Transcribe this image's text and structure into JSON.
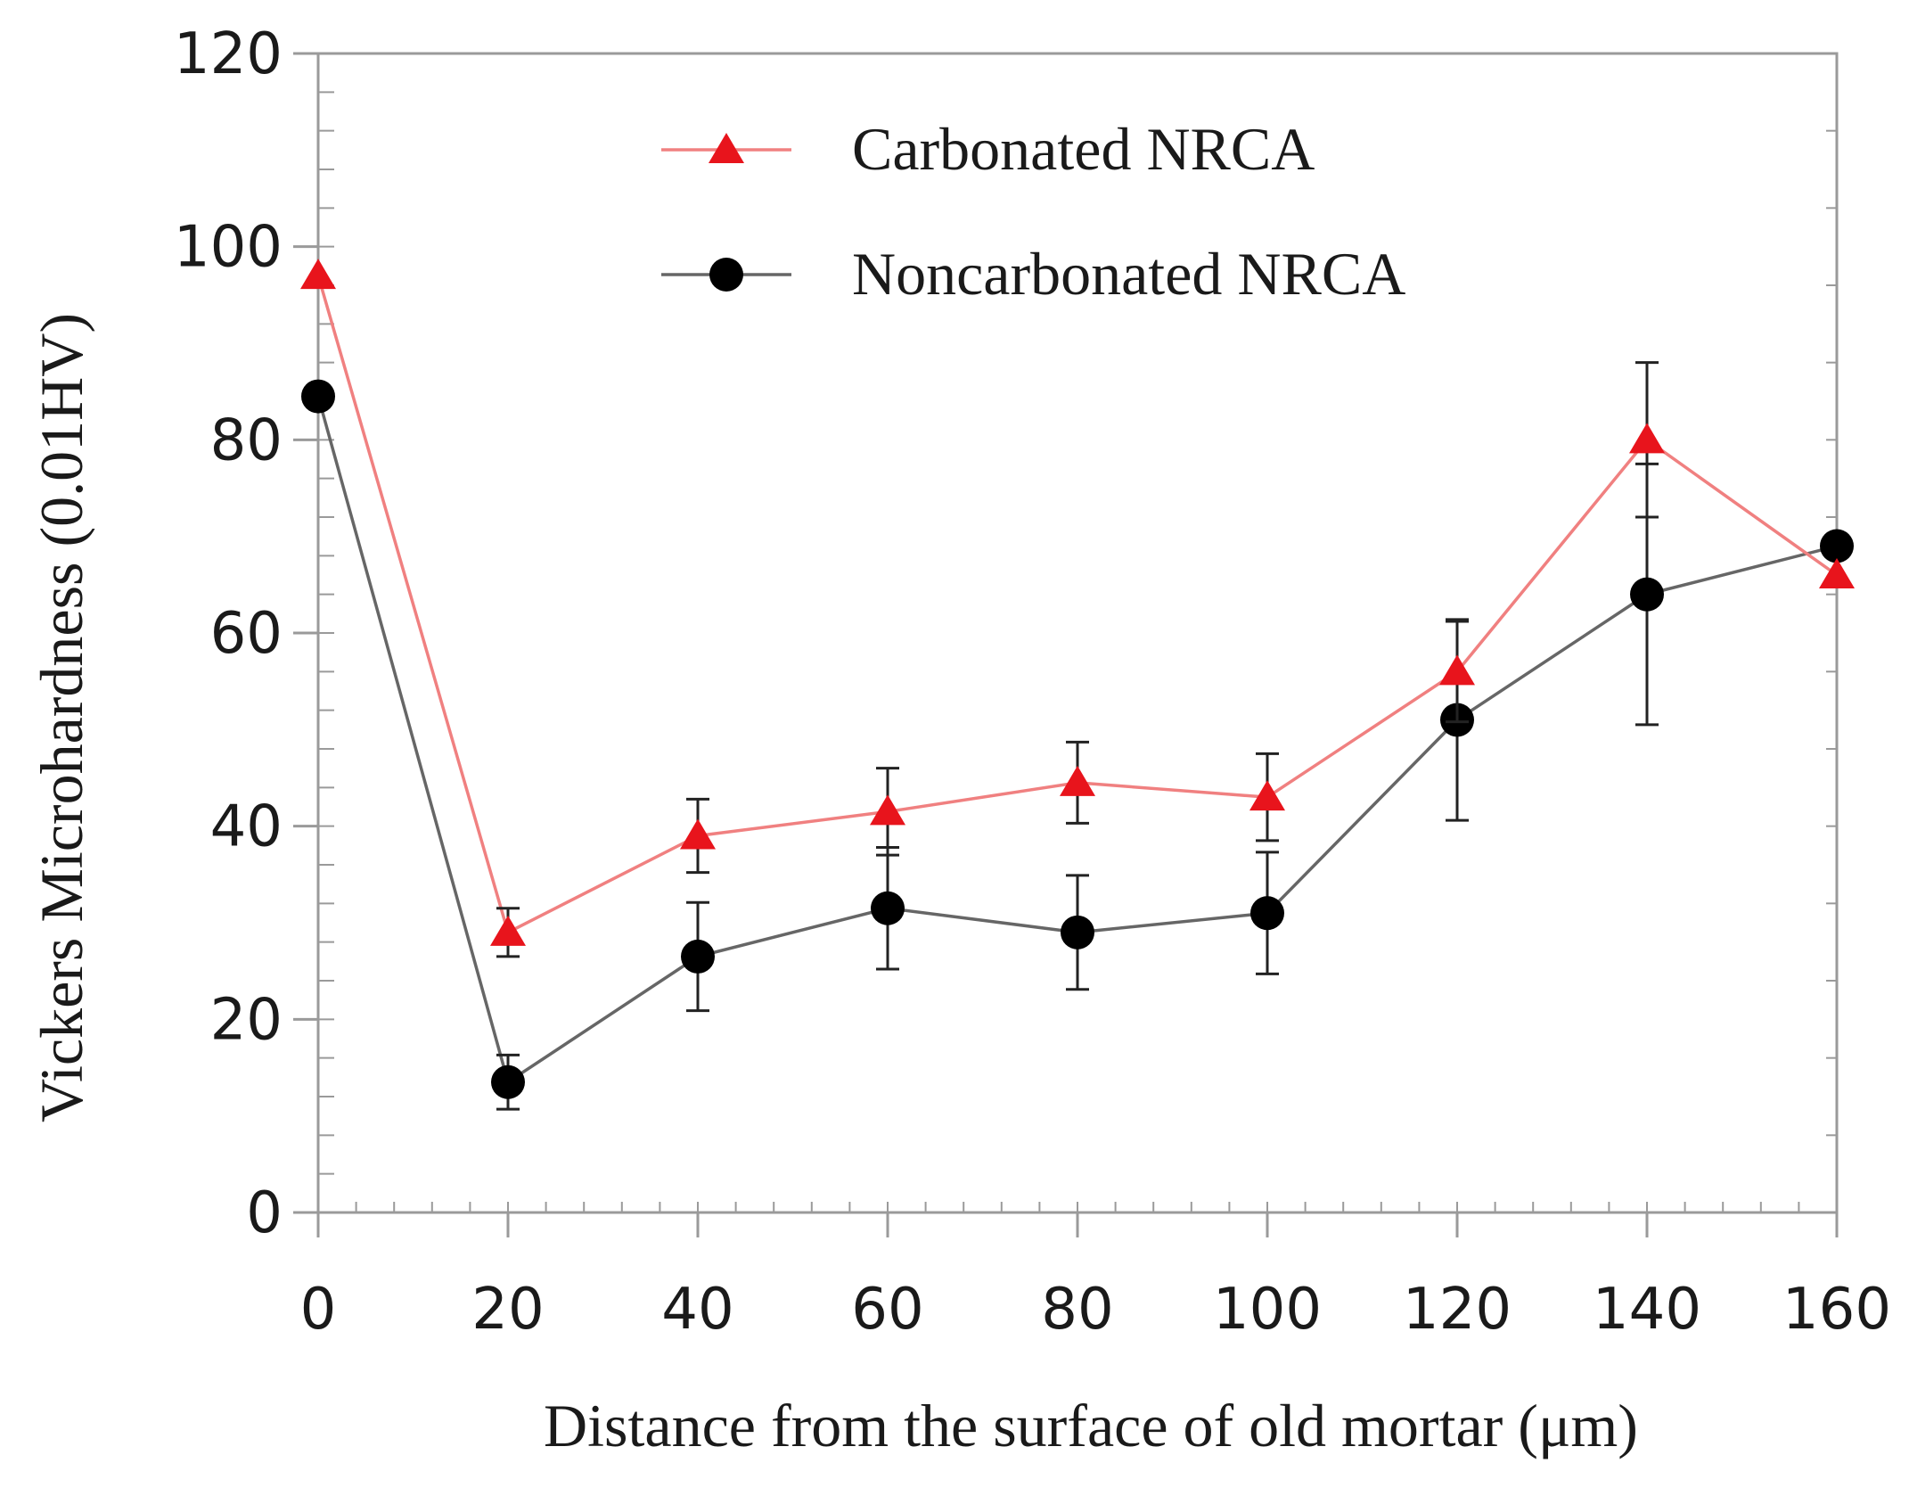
{
  "chart_data": {
    "type": "line",
    "title": "",
    "xlabel": "Distance from the surface of old mortar (μm)",
    "ylabel": "Vickers Microhardness (0.01HV)",
    "xlim": [
      0,
      160
    ],
    "ylim": [
      0,
      120
    ],
    "x_ticks": [
      0,
      20,
      40,
      60,
      80,
      100,
      120,
      140,
      160
    ],
    "y_ticks": [
      0,
      20,
      40,
      60,
      80,
      100,
      120
    ],
    "x_minor_step": 4,
    "y_minor_step": 4,
    "grid": false,
    "legend_position": "top-center",
    "series": [
      {
        "name": "Carbonated NRCA",
        "color": "#e8141c",
        "line_color": "#f08080",
        "marker": "triangle",
        "x": [
          0,
          20,
          40,
          60,
          80,
          100,
          120,
          140,
          160
        ],
        "values": [
          97,
          29,
          39,
          41.5,
          44.5,
          43,
          56,
          80,
          66
        ],
        "error": [
          0,
          2.5,
          3.8,
          4.5,
          4.2,
          4.5,
          5.2,
          8,
          0
        ]
      },
      {
        "name": "Noncarbonated NRCA",
        "color": "#000000",
        "line_color": "#666666",
        "marker": "circle",
        "x": [
          0,
          20,
          40,
          60,
          80,
          100,
          120,
          140,
          160
        ],
        "values": [
          84.5,
          13.5,
          26.5,
          31.5,
          29,
          31,
          51,
          64,
          69
        ],
        "error": [
          0,
          2.8,
          5.6,
          6.3,
          5.9,
          6.3,
          10.4,
          13.5,
          0
        ]
      }
    ]
  }
}
